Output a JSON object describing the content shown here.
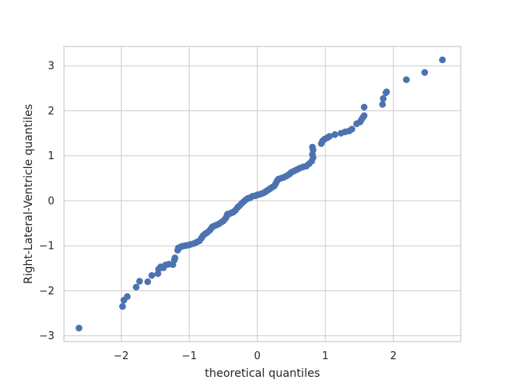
{
  "chart_data": {
    "type": "scatter",
    "xlabel": "theoretical quantiles",
    "ylabel": "Right-Lateral-Ventricle quantiles",
    "xlim": [
      -2.84,
      2.99
    ],
    "ylim": [
      -3.13,
      3.43
    ],
    "xticks": [
      -2,
      -1,
      0,
      1,
      2
    ],
    "yticks": [
      -3,
      -2,
      -1,
      0,
      1,
      2,
      3
    ],
    "xtick_labels": [
      "−2",
      "−1",
      "0",
      "1",
      "2"
    ],
    "ytick_labels": [
      "−3",
      "−2",
      "−1",
      "0",
      "1",
      "2",
      "3"
    ],
    "grid": true,
    "marker_color": "#4c72b0",
    "points": [
      [
        -2.62,
        -2.83
      ],
      [
        -1.98,
        -2.35
      ],
      [
        -1.96,
        -2.21
      ],
      [
        -1.91,
        -2.13
      ],
      [
        -1.78,
        -1.92
      ],
      [
        -1.73,
        -1.79
      ],
      [
        -1.61,
        -1.8
      ],
      [
        -1.55,
        -1.66
      ],
      [
        -1.46,
        -1.62
      ],
      [
        -1.45,
        -1.52
      ],
      [
        -1.42,
        -1.47
      ],
      [
        -1.38,
        -1.49
      ],
      [
        -1.35,
        -1.43
      ],
      [
        -1.3,
        -1.41
      ],
      [
        -1.24,
        -1.42
      ],
      [
        -1.22,
        -1.32
      ],
      [
        -1.21,
        -1.27
      ],
      [
        -1.17,
        -1.1
      ],
      [
        -1.16,
        -1.05
      ],
      [
        -1.13,
        -1.03
      ],
      [
        -1.1,
        -1.01
      ],
      [
        -1.06,
        -1.0
      ],
      [
        -1.02,
        -0.99
      ],
      [
        -0.98,
        -0.97
      ],
      [
        -0.93,
        -0.95
      ],
      [
        -0.89,
        -0.92
      ],
      [
        -0.85,
        -0.89
      ],
      [
        -0.82,
        -0.83
      ],
      [
        -0.8,
        -0.78
      ],
      [
        -0.77,
        -0.74
      ],
      [
        -0.74,
        -0.71
      ],
      [
        -0.7,
        -0.66
      ],
      [
        -0.68,
        -0.62
      ],
      [
        -0.66,
        -0.58
      ],
      [
        -0.63,
        -0.56
      ],
      [
        -0.6,
        -0.54
      ],
      [
        -0.57,
        -0.52
      ],
      [
        -0.53,
        -0.48
      ],
      [
        -0.5,
        -0.45
      ],
      [
        -0.47,
        -0.4
      ],
      [
        -0.45,
        -0.35
      ],
      [
        -0.44,
        -0.3
      ],
      [
        -0.41,
        -0.29
      ],
      [
        -0.38,
        -0.27
      ],
      [
        -0.35,
        -0.25
      ],
      [
        -0.32,
        -0.21
      ],
      [
        -0.29,
        -0.15
      ],
      [
        -0.26,
        -0.11
      ],
      [
        -0.23,
        -0.06
      ],
      [
        -0.2,
        -0.02
      ],
      [
        -0.17,
        0.02
      ],
      [
        -0.14,
        0.05
      ],
      [
        -0.1,
        0.07
      ],
      [
        -0.07,
        0.1
      ],
      [
        -0.03,
        0.11
      ],
      [
        0.0,
        0.13
      ],
      [
        0.03,
        0.14
      ],
      [
        0.07,
        0.16
      ],
      [
        0.1,
        0.18
      ],
      [
        0.13,
        0.21
      ],
      [
        0.16,
        0.24
      ],
      [
        0.19,
        0.27
      ],
      [
        0.22,
        0.3
      ],
      [
        0.25,
        0.33
      ],
      [
        0.27,
        0.38
      ],
      [
        0.29,
        0.44
      ],
      [
        0.31,
        0.48
      ],
      [
        0.35,
        0.5
      ],
      [
        0.39,
        0.52
      ],
      [
        0.43,
        0.55
      ],
      [
        0.47,
        0.59
      ],
      [
        0.5,
        0.63
      ],
      [
        0.54,
        0.66
      ],
      [
        0.58,
        0.69
      ],
      [
        0.62,
        0.72
      ],
      [
        0.67,
        0.75
      ],
      [
        0.72,
        0.77
      ],
      [
        0.76,
        0.82
      ],
      [
        0.8,
        0.88
      ],
      [
        0.82,
        0.96
      ],
      [
        0.81,
        1.03
      ],
      [
        0.82,
        1.13
      ],
      [
        0.81,
        1.19
      ],
      [
        0.94,
        1.27
      ],
      [
        0.96,
        1.33
      ],
      [
        0.99,
        1.37
      ],
      [
        1.03,
        1.4
      ],
      [
        1.06,
        1.43
      ],
      [
        1.14,
        1.47
      ],
      [
        1.23,
        1.5
      ],
      [
        1.29,
        1.53
      ],
      [
        1.35,
        1.55
      ],
      [
        1.39,
        1.59
      ],
      [
        1.46,
        1.71
      ],
      [
        1.51,
        1.75
      ],
      [
        1.53,
        1.8
      ],
      [
        1.55,
        1.85
      ],
      [
        1.57,
        1.89
      ],
      [
        1.57,
        2.08
      ],
      [
        1.84,
        2.14
      ],
      [
        1.85,
        2.27
      ],
      [
        1.89,
        2.4
      ],
      [
        1.9,
        2.42
      ],
      [
        2.19,
        2.69
      ],
      [
        2.46,
        2.85
      ],
      [
        2.72,
        3.13
      ]
    ]
  }
}
